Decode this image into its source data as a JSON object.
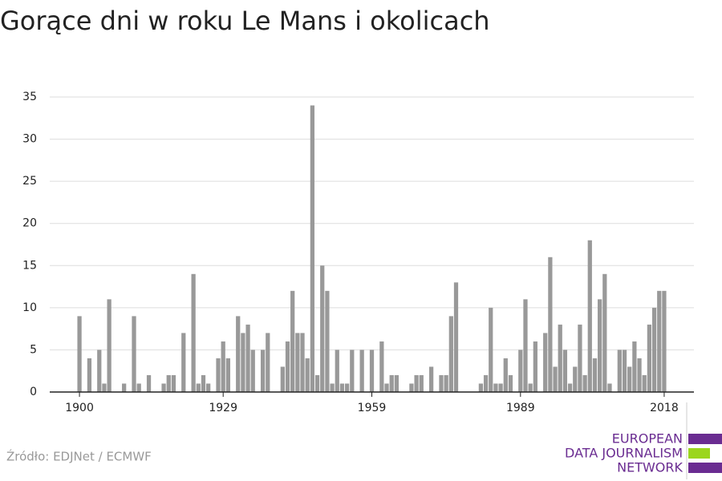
{
  "chart_data": {
    "type": "bar",
    "title": "Gorące dni w roku Le Mans i okolicach",
    "source": "Źródło: EDJNet / ECMWF",
    "logo": [
      "EUROPEAN",
      "DATA JOURNALISM",
      "NETWORK"
    ],
    "color": "#999999",
    "x": [
      1900,
      1901,
      1902,
      1903,
      1904,
      1905,
      1906,
      1907,
      1908,
      1909,
      1910,
      1911,
      1912,
      1913,
      1914,
      1915,
      1916,
      1917,
      1918,
      1919,
      1920,
      1921,
      1922,
      1923,
      1924,
      1925,
      1926,
      1927,
      1928,
      1929,
      1930,
      1931,
      1932,
      1933,
      1934,
      1935,
      1936,
      1937,
      1938,
      1939,
      1940,
      1941,
      1942,
      1943,
      1944,
      1945,
      1946,
      1947,
      1948,
      1949,
      1950,
      1951,
      1952,
      1953,
      1954,
      1955,
      1956,
      1957,
      1958,
      1959,
      1960,
      1961,
      1962,
      1963,
      1964,
      1965,
      1966,
      1967,
      1968,
      1969,
      1970,
      1971,
      1972,
      1973,
      1974,
      1975,
      1976,
      1977,
      1978,
      1979,
      1980,
      1981,
      1982,
      1983,
      1984,
      1985,
      1986,
      1987,
      1988,
      1989,
      1990,
      1991,
      1992,
      1993,
      1994,
      1995,
      1996,
      1997,
      1998,
      1999,
      2000,
      2001,
      2002,
      2003,
      2004,
      2005,
      2006,
      2007,
      2008,
      2009,
      2010,
      2011,
      2012,
      2013,
      2014,
      2015,
      2016,
      2017,
      2018
    ],
    "values": [
      9,
      0,
      4,
      0,
      5,
      1,
      11,
      0,
      0,
      1,
      0,
      9,
      1,
      0,
      2,
      0,
      0,
      1,
      2,
      2,
      0,
      7,
      0,
      14,
      1,
      2,
      1,
      0,
      4,
      6,
      4,
      0,
      9,
      7,
      8,
      5,
      0,
      5,
      7,
      0,
      0,
      3,
      6,
      12,
      7,
      7,
      4,
      34,
      2,
      15,
      12,
      1,
      5,
      1,
      1,
      5,
      0,
      5,
      0,
      5,
      0,
      6,
      1,
      2,
      2,
      0,
      0,
      1,
      2,
      2,
      0,
      3,
      0,
      2,
      2,
      9,
      13,
      0,
      0,
      0,
      0,
      1,
      2,
      10,
      1,
      1,
      4,
      2,
      0,
      5,
      11,
      1,
      6,
      0,
      7,
      16,
      3,
      8,
      5,
      1,
      3,
      8,
      2,
      18,
      4,
      11,
      14,
      1,
      0,
      5,
      5,
      3,
      6,
      4,
      2,
      8,
      10,
      12,
      12
    ],
    "xlim": [
      1894,
      2024
    ],
    "xticks": [
      1900,
      1929,
      1959,
      1989,
      2018
    ],
    "ylim": [
      0,
      35
    ],
    "yticks": [
      0,
      5,
      10,
      15,
      20,
      25,
      30,
      35
    ],
    "grid": true
  }
}
